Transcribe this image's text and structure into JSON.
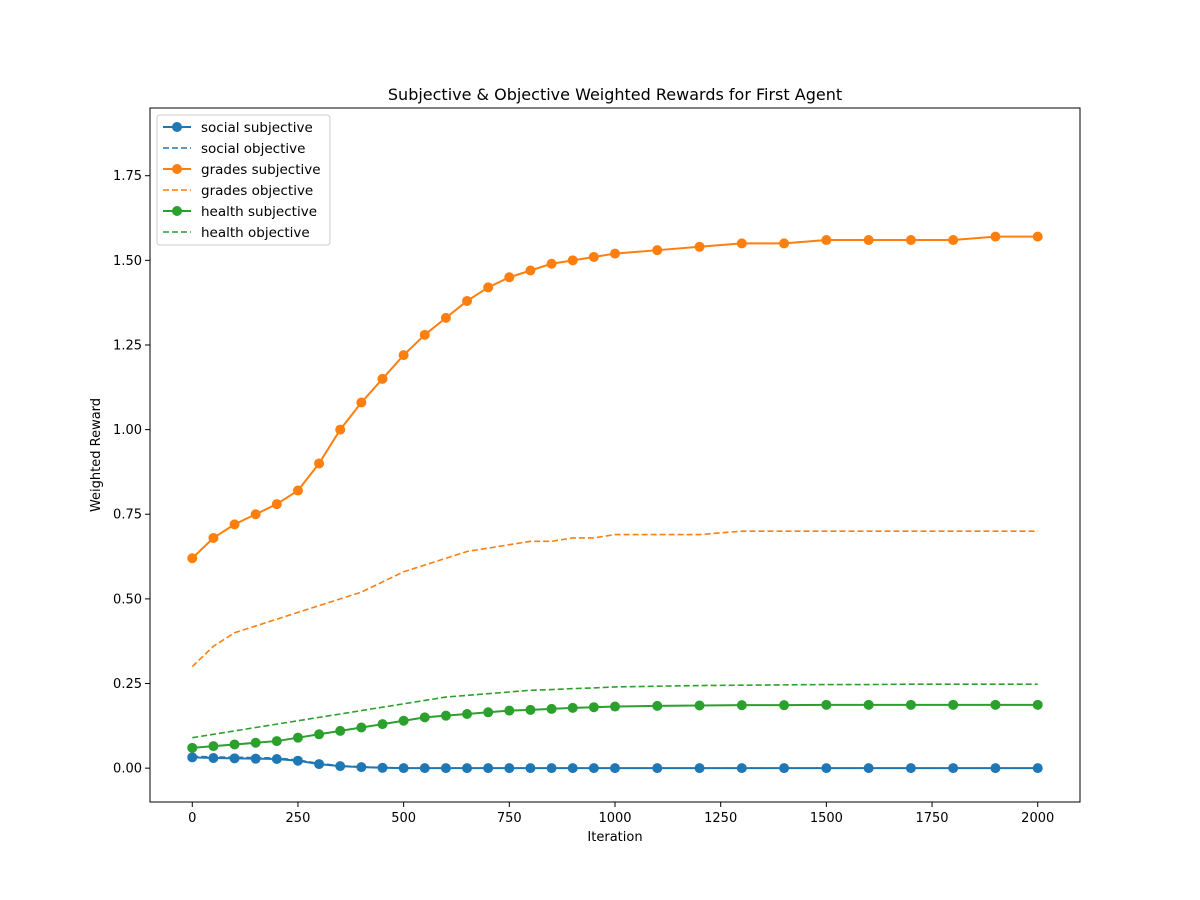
{
  "chart_data": {
    "type": "line",
    "title": "Subjective & Objective Weighted Rewards for First Agent",
    "xlabel": "Iteration",
    "ylabel": "Weighted Reward",
    "xlim": [
      -100,
      2100
    ],
    "ylim": [
      -0.1,
      1.95
    ],
    "xticks": [
      0,
      250,
      500,
      750,
      1000,
      1250,
      1500,
      1750,
      2000
    ],
    "xtick_labels": [
      "0",
      "250",
      "500",
      "750",
      "1000",
      "1250",
      "1500",
      "1750",
      "2000"
    ],
    "yticks": [
      0.0,
      0.25,
      0.5,
      0.75,
      1.0,
      1.25,
      1.5,
      1.75
    ],
    "ytick_labels": [
      "0.00",
      "0.25",
      "0.50",
      "0.75",
      "1.00",
      "1.25",
      "1.50",
      "1.75"
    ],
    "grid": false,
    "legend_position": "top-left",
    "x": [
      0,
      50,
      100,
      150,
      200,
      250,
      300,
      350,
      400,
      450,
      500,
      550,
      600,
      650,
      700,
      750,
      800,
      850,
      900,
      950,
      1000,
      1100,
      1200,
      1300,
      1400,
      1500,
      1600,
      1700,
      1800,
      1900,
      2000
    ],
    "series": [
      {
        "name": "social subjective",
        "color": "#1f77b4",
        "style": "solid-marker",
        "values": [
          0.032,
          0.03,
          0.029,
          0.028,
          0.027,
          0.022,
          0.012,
          0.006,
          0.003,
          0.001,
          0.0,
          0.0,
          0.0,
          0.0,
          0.0,
          0.0,
          0.0,
          0.0,
          0.0,
          0.0,
          0.0,
          0.0,
          0.0,
          0.0,
          0.0,
          0.0,
          0.0,
          0.0,
          0.0,
          0.0,
          0.0
        ]
      },
      {
        "name": "social objective",
        "color": "#1f77b4",
        "style": "dashed",
        "values": [
          0.035,
          0.033,
          0.032,
          0.031,
          0.03,
          0.024,
          0.014,
          0.007,
          0.004,
          0.002,
          0.0,
          0.0,
          0.0,
          0.0,
          0.0,
          0.0,
          0.0,
          0.0,
          0.0,
          0.0,
          0.0,
          0.0,
          0.0,
          0.0,
          0.0,
          0.0,
          0.0,
          0.0,
          0.0,
          0.0,
          0.0
        ]
      },
      {
        "name": "grades subjective",
        "color": "#ff7f0e",
        "style": "solid-marker",
        "values": [
          0.62,
          0.68,
          0.72,
          0.75,
          0.78,
          0.82,
          0.9,
          1.0,
          1.08,
          1.15,
          1.22,
          1.28,
          1.33,
          1.38,
          1.42,
          1.45,
          1.47,
          1.49,
          1.5,
          1.51,
          1.52,
          1.53,
          1.54,
          1.55,
          1.55,
          1.56,
          1.56,
          1.56,
          1.56,
          1.57,
          1.57
        ]
      },
      {
        "name": "grades objective",
        "color": "#ff7f0e",
        "style": "dashed",
        "values": [
          0.3,
          0.36,
          0.4,
          0.42,
          0.44,
          0.46,
          0.48,
          0.5,
          0.52,
          0.55,
          0.58,
          0.6,
          0.62,
          0.64,
          0.65,
          0.66,
          0.67,
          0.67,
          0.68,
          0.68,
          0.69,
          0.69,
          0.69,
          0.7,
          0.7,
          0.7,
          0.7,
          0.7,
          0.7,
          0.7,
          0.7
        ]
      },
      {
        "name": "health subjective",
        "color": "#2ca02c",
        "style": "solid-marker",
        "values": [
          0.06,
          0.065,
          0.07,
          0.075,
          0.08,
          0.09,
          0.1,
          0.11,
          0.12,
          0.13,
          0.14,
          0.15,
          0.155,
          0.16,
          0.165,
          0.17,
          0.172,
          0.175,
          0.178,
          0.18,
          0.182,
          0.184,
          0.185,
          0.186,
          0.186,
          0.187,
          0.187,
          0.187,
          0.187,
          0.187,
          0.187
        ]
      },
      {
        "name": "health objective",
        "color": "#2ca02c",
        "style": "dashed",
        "values": [
          0.09,
          0.1,
          0.11,
          0.12,
          0.13,
          0.14,
          0.15,
          0.16,
          0.17,
          0.18,
          0.19,
          0.2,
          0.21,
          0.215,
          0.22,
          0.225,
          0.23,
          0.232,
          0.235,
          0.237,
          0.24,
          0.242,
          0.244,
          0.245,
          0.246,
          0.247,
          0.247,
          0.248,
          0.248,
          0.248,
          0.248
        ]
      }
    ]
  }
}
